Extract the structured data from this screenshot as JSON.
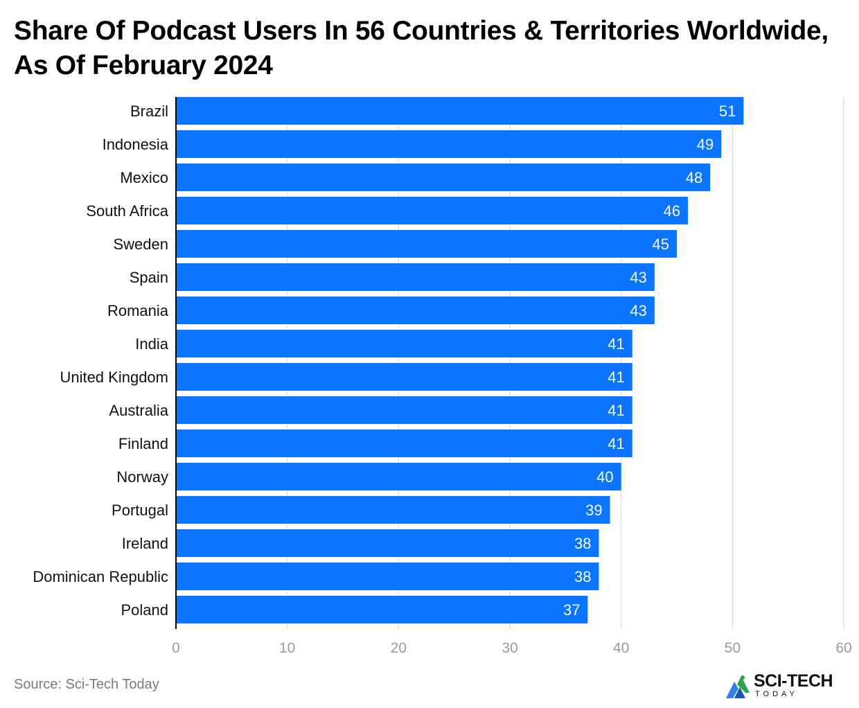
{
  "chart_data": {
    "type": "bar",
    "orientation": "horizontal",
    "title": "Share Of Podcast Users In 56 Countries & Territories Worldwide, As Of February 2024",
    "categories": [
      "Brazil",
      "Indonesia",
      "Mexico",
      "South Africa",
      "Sweden",
      "Spain",
      "Romania",
      "India",
      "United Kingdom",
      "Australia",
      "Finland",
      "Norway",
      "Portugal",
      "Ireland",
      "Dominican Republic",
      "Poland"
    ],
    "values": [
      51,
      49,
      48,
      46,
      45,
      43,
      43,
      41,
      41,
      41,
      41,
      40,
      39,
      38,
      38,
      37
    ],
    "xlim": [
      0,
      60
    ],
    "xticks": [
      "0",
      "10",
      "20",
      "30",
      "40",
      "50",
      "60"
    ],
    "xlabel": "",
    "ylabel": "",
    "grid": true,
    "data_labels": true
  },
  "colors": {
    "bar": "#0a74ff",
    "grid": "#e0e0e0",
    "axis": "#000000",
    "tick_label": "#9a9a9a",
    "data_label": "#ffffff",
    "logo_accent": "#2f80ed",
    "logo_green": "#2ea44f"
  },
  "footer": {
    "source": "Source: Sci-Tech Today"
  },
  "logo": {
    "name": "SCI-TECH",
    "sub": "TODAY"
  }
}
